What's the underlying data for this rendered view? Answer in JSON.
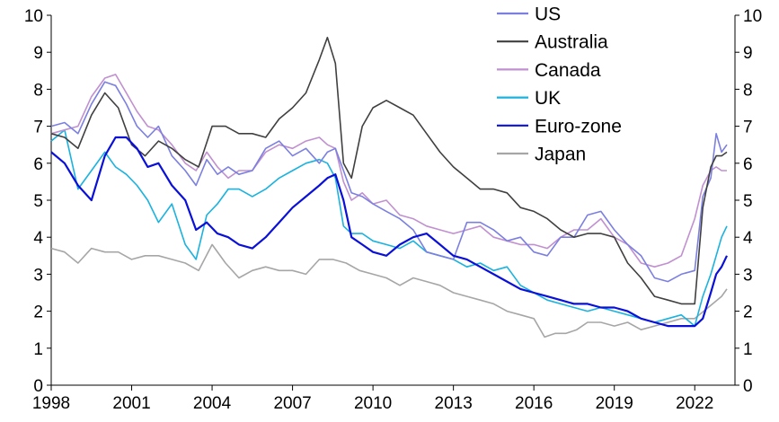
{
  "chart_data": {
    "type": "line",
    "title": "",
    "xlabel": "",
    "ylabel": "",
    "xlim": [
      1998,
      2023.5
    ],
    "ylim": [
      0,
      10
    ],
    "x_ticks": [
      "1998",
      "2001",
      "2004",
      "2007",
      "2010",
      "2013",
      "2016",
      "2019",
      "2022"
    ],
    "y_ticks": [
      "0",
      "1",
      "2",
      "3",
      "4",
      "5",
      "6",
      "7",
      "8",
      "9",
      "10"
    ],
    "y_axis_sides": [
      "left",
      "right"
    ],
    "grid": false,
    "legend_position": "top-right",
    "series": [
      {
        "name": "US",
        "color": "#7b7fe0",
        "x": [
          1998,
          1998.5,
          1999,
          1999.5,
          2000,
          2000.4,
          2000.8,
          2001.2,
          2001.6,
          2002,
          2002.5,
          2003,
          2003.4,
          2003.8,
          2004.2,
          2004.6,
          2005,
          2005.5,
          2006,
          2006.5,
          2007,
          2007.5,
          2008,
          2008.3,
          2008.6,
          2008.9,
          2009.2,
          2009.6,
          2010,
          2010.5,
          2011,
          2011.5,
          2012,
          2012.5,
          2013,
          2013.5,
          2014,
          2014.5,
          2015,
          2015.5,
          2016,
          2016.5,
          2017,
          2017.5,
          2018,
          2018.5,
          2019,
          2019.5,
          2020,
          2020.5,
          2021,
          2021.5,
          2022,
          2022.3,
          2022.6,
          2022.8,
          2023,
          2023.2
        ],
        "values": [
          7.0,
          7.1,
          6.8,
          7.6,
          8.2,
          8.1,
          7.6,
          7.0,
          6.7,
          7.0,
          6.2,
          5.8,
          5.4,
          6.1,
          5.7,
          5.9,
          5.7,
          5.8,
          6.4,
          6.6,
          6.2,
          6.4,
          6.0,
          6.3,
          6.4,
          5.8,
          5.2,
          5.1,
          4.9,
          4.7,
          4.5,
          4.2,
          3.6,
          3.5,
          3.4,
          4.4,
          4.4,
          4.2,
          3.9,
          4.0,
          3.6,
          3.5,
          4.0,
          4.0,
          4.6,
          4.7,
          4.2,
          3.8,
          3.5,
          2.9,
          2.8,
          3.0,
          3.1,
          5.1,
          5.6,
          6.8,
          6.3,
          6.5
        ]
      },
      {
        "name": "Australia",
        "color": "#404040",
        "x": [
          1998,
          1998.5,
          1999,
          1999.5,
          2000,
          2000.5,
          2001,
          2001.5,
          2002,
          2002.5,
          2003,
          2003.5,
          2004,
          2004.5,
          2005,
          2005.5,
          2006,
          2006.5,
          2007,
          2007.5,
          2008,
          2008.3,
          2008.6,
          2008.9,
          2009.2,
          2009.6,
          2010,
          2010.5,
          2011,
          2011.5,
          2012,
          2012.5,
          2013,
          2013.5,
          2014,
          2014.5,
          2015,
          2015.5,
          2016,
          2016.5,
          2017,
          2017.5,
          2018,
          2018.5,
          2019,
          2019.5,
          2020,
          2020.5,
          2021,
          2021.5,
          2022,
          2022.3,
          2022.6,
          2022.8,
          2023,
          2023.2
        ],
        "values": [
          6.8,
          6.7,
          6.4,
          7.3,
          7.9,
          7.5,
          6.5,
          6.2,
          6.6,
          6.4,
          6.1,
          5.9,
          7.0,
          7.0,
          6.8,
          6.8,
          6.7,
          7.2,
          7.5,
          7.9,
          8.8,
          9.4,
          8.7,
          6.0,
          5.6,
          7.0,
          7.5,
          7.7,
          7.5,
          7.3,
          6.8,
          6.3,
          5.9,
          5.6,
          5.3,
          5.3,
          5.2,
          4.8,
          4.7,
          4.5,
          4.2,
          4.0,
          4.1,
          4.1,
          4.0,
          3.3,
          2.9,
          2.4,
          2.3,
          2.2,
          2.2,
          4.8,
          5.9,
          6.2,
          6.2,
          6.3
        ]
      },
      {
        "name": "Canada",
        "color": "#c090d0",
        "x": [
          1998,
          1998.5,
          1999,
          1999.5,
          2000,
          2000.4,
          2000.8,
          2001.2,
          2001.6,
          2002,
          2002.5,
          2003,
          2003.4,
          2003.8,
          2004.2,
          2004.6,
          2005,
          2005.5,
          2006,
          2006.5,
          2007,
          2007.5,
          2008,
          2008.3,
          2008.6,
          2008.9,
          2009.2,
          2009.6,
          2010,
          2010.5,
          2011,
          2011.5,
          2012,
          2012.5,
          2013,
          2013.5,
          2014,
          2014.5,
          2015,
          2015.5,
          2016,
          2016.5,
          2017,
          2017.5,
          2018,
          2018.5,
          2019,
          2019.5,
          2020,
          2020.5,
          2021,
          2021.5,
          2022,
          2022.3,
          2022.6,
          2022.8,
          2023,
          2023.2
        ],
        "values": [
          6.8,
          6.9,
          7.0,
          7.8,
          8.3,
          8.4,
          7.9,
          7.4,
          7.0,
          6.9,
          6.5,
          6.0,
          5.8,
          6.3,
          5.9,
          5.6,
          5.8,
          5.8,
          6.3,
          6.5,
          6.4,
          6.6,
          6.7,
          6.5,
          6.4,
          5.5,
          5.0,
          5.2,
          4.9,
          5.0,
          4.6,
          4.5,
          4.3,
          4.2,
          4.1,
          4.2,
          4.3,
          4.0,
          3.9,
          3.8,
          3.8,
          3.7,
          4.0,
          4.2,
          4.2,
          4.5,
          4.0,
          3.8,
          3.3,
          3.2,
          3.3,
          3.5,
          4.5,
          5.4,
          5.8,
          5.9,
          5.8,
          5.8
        ]
      },
      {
        "name": "UK",
        "color": "#1ab2de",
        "x": [
          1998,
          1998.5,
          1999,
          1999.5,
          2000,
          2000.4,
          2000.8,
          2001.2,
          2001.6,
          2002,
          2002.5,
          2003,
          2003.4,
          2003.8,
          2004.2,
          2004.6,
          2005,
          2005.5,
          2006,
          2006.5,
          2007,
          2007.5,
          2008,
          2008.3,
          2008.6,
          2008.9,
          2009.2,
          2009.6,
          2010,
          2010.5,
          2011,
          2011.5,
          2012,
          2012.5,
          2013,
          2013.5,
          2014,
          2014.5,
          2015,
          2015.5,
          2016,
          2016.5,
          2017,
          2017.5,
          2018,
          2018.5,
          2019,
          2019.5,
          2020,
          2020.5,
          2021,
          2021.5,
          2022,
          2022.3,
          2022.6,
          2022.8,
          2023,
          2023.2
        ],
        "values": [
          6.6,
          6.9,
          5.3,
          5.8,
          6.3,
          5.9,
          5.7,
          5.4,
          5.0,
          4.4,
          4.9,
          3.8,
          3.4,
          4.6,
          4.9,
          5.3,
          5.3,
          5.1,
          5.3,
          5.6,
          5.8,
          6.0,
          6.1,
          6.0,
          5.6,
          4.3,
          4.1,
          4.1,
          3.9,
          3.8,
          3.7,
          3.9,
          3.6,
          3.5,
          3.4,
          3.2,
          3.3,
          3.1,
          3.2,
          2.7,
          2.5,
          2.3,
          2.2,
          2.1,
          2.0,
          2.1,
          2.0,
          1.9,
          1.8,
          1.7,
          1.8,
          1.9,
          1.6,
          2.4,
          3.0,
          3.5,
          4.0,
          4.3
        ]
      },
      {
        "name": "Euro-zone",
        "color": "#0a10d8",
        "x": [
          1998,
          1998.5,
          1999,
          1999.5,
          2000,
          2000.4,
          2000.8,
          2001.2,
          2001.6,
          2002,
          2002.5,
          2003,
          2003.4,
          2003.8,
          2004.2,
          2004.6,
          2005,
          2005.5,
          2006,
          2006.5,
          2007,
          2007.5,
          2008,
          2008.3,
          2008.6,
          2008.9,
          2009.2,
          2009.6,
          2010,
          2010.5,
          2011,
          2011.5,
          2012,
          2012.5,
          2013,
          2013.5,
          2014,
          2014.5,
          2015,
          2015.5,
          2016,
          2016.5,
          2017,
          2017.5,
          2018,
          2018.5,
          2019,
          2019.5,
          2020,
          2020.5,
          2021,
          2021.5,
          2022,
          2022.3,
          2022.6,
          2022.8,
          2023,
          2023.2
        ],
        "values": [
          6.3,
          6.0,
          5.4,
          5.0,
          6.2,
          6.7,
          6.7,
          6.4,
          5.9,
          6.0,
          5.4,
          5.0,
          4.2,
          4.4,
          4.1,
          4.0,
          3.8,
          3.7,
          4.0,
          4.4,
          4.8,
          5.1,
          5.4,
          5.6,
          5.7,
          5.0,
          4.0,
          3.8,
          3.6,
          3.5,
          3.8,
          4.0,
          4.1,
          3.8,
          3.5,
          3.4,
          3.2,
          3.0,
          2.8,
          2.6,
          2.5,
          2.4,
          2.3,
          2.2,
          2.2,
          2.1,
          2.1,
          2.0,
          1.8,
          1.7,
          1.6,
          1.6,
          1.6,
          1.8,
          2.5,
          3.0,
          3.2,
          3.5
        ]
      },
      {
        "name": "Japan",
        "color": "#a6a6a6",
        "x": [
          1998,
          1998.5,
          1999,
          1999.5,
          2000,
          2000.5,
          2001,
          2001.5,
          2002,
          2002.5,
          2003,
          2003.5,
          2004,
          2004.5,
          2005,
          2005.5,
          2006,
          2006.5,
          2007,
          2007.5,
          2008,
          2008.5,
          2009,
          2009.5,
          2010,
          2010.5,
          2011,
          2011.5,
          2012,
          2012.5,
          2013,
          2013.5,
          2014,
          2014.5,
          2015,
          2015.5,
          2016,
          2016.4,
          2016.8,
          2017.2,
          2017.6,
          2018,
          2018.5,
          2019,
          2019.5,
          2020,
          2020.5,
          2021,
          2021.5,
          2022,
          2022.5,
          2023,
          2023.2
        ],
        "values": [
          3.7,
          3.6,
          3.3,
          3.7,
          3.6,
          3.6,
          3.4,
          3.5,
          3.5,
          3.4,
          3.3,
          3.1,
          3.8,
          3.3,
          2.9,
          3.1,
          3.2,
          3.1,
          3.1,
          3.0,
          3.4,
          3.4,
          3.3,
          3.1,
          3.0,
          2.9,
          2.7,
          2.9,
          2.8,
          2.7,
          2.5,
          2.4,
          2.3,
          2.2,
          2.0,
          1.9,
          1.8,
          1.3,
          1.4,
          1.4,
          1.5,
          1.7,
          1.7,
          1.6,
          1.7,
          1.5,
          1.6,
          1.7,
          1.8,
          1.8,
          2.1,
          2.4,
          2.6
        ]
      }
    ]
  }
}
